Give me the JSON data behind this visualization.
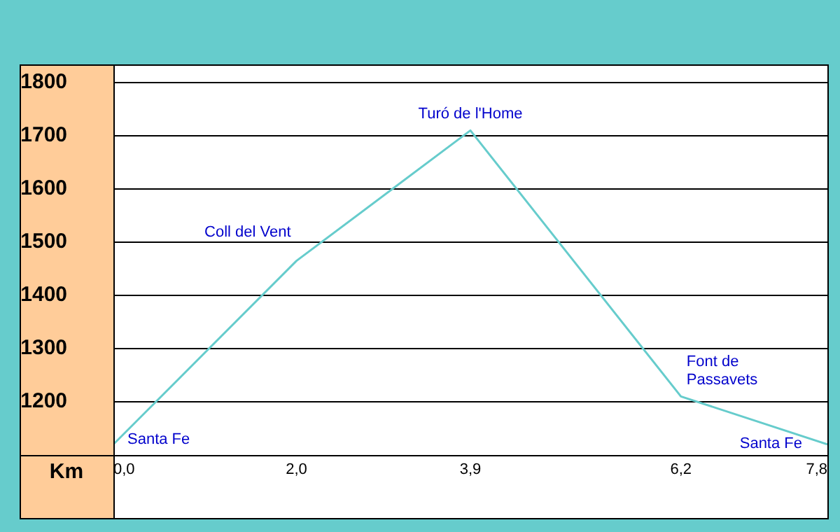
{
  "chart_data": {
    "type": "line",
    "xlabel": "Km",
    "x": [
      0,
      2,
      3.9,
      6.2,
      7.8
    ],
    "series": [
      {
        "color": "#66cccc",
        "values": [
          1120,
          1465,
          1710,
          1210,
          1120
        ]
      }
    ],
    "xlim": [
      0,
      7.8
    ],
    "xticks": [
      {
        "value": 0,
        "label": "0,0"
      },
      {
        "value": 2,
        "label": "2,0"
      },
      {
        "value": 3.9,
        "label": "3,9"
      },
      {
        "value": 6.2,
        "label": "6,2"
      },
      {
        "value": 7.8,
        "label": "7,8"
      }
    ],
    "ylim": [
      1100,
      1800
    ],
    "yticks": [
      1200,
      1300,
      1400,
      1500,
      1600,
      1700,
      1800
    ],
    "grid": "y",
    "legend": false,
    "marker": "none",
    "line_style": "solid",
    "annotations": [
      {
        "text": "Santa Fe",
        "x": 0,
        "y": 1120
      },
      {
        "text": "Coll del Vent",
        "x": 2,
        "y": 1465
      },
      {
        "text": "Turó de l'Home",
        "x": 3.9,
        "y": 1710
      },
      {
        "text": "Font de\nPassavets",
        "x": 6.2,
        "y": 1210
      },
      {
        "text": "Santa Fe",
        "x": 7.8,
        "y": 1120
      }
    ]
  }
}
